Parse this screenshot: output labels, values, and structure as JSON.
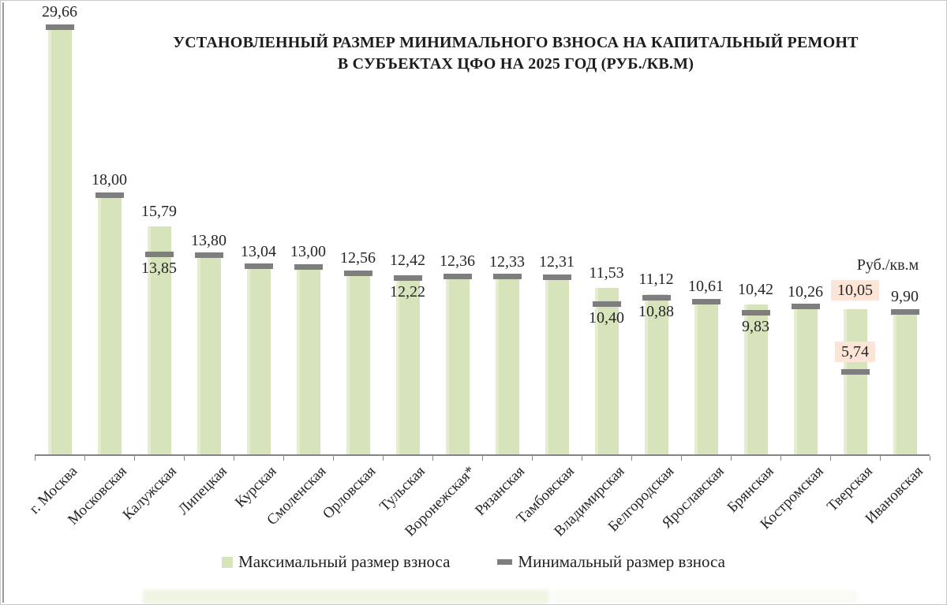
{
  "title": {
    "line1": "УСТАНОВЛЕННЫЙ РАЗМЕР МИНИМАЛЬНОГО ВЗНОСА  НА КАПИТАЛЬНЫЙ РЕМОНТ",
    "line2": "В СУБЪЕКТАХ  ЦФО  НА 2025 ГОД (РУБ./КВ.М)"
  },
  "unit_label": "Руб./кв.м",
  "legend": {
    "max_label": "Максимальный размер взноса",
    "min_label": "Минимальный размер взноса"
  },
  "colors": {
    "bar_fill": "#d7e3ba",
    "bar_fill_light": "#e5edd1",
    "marker": "#7e7e7e",
    "highlight_bg": "#fce5d6",
    "axis": "#858585"
  },
  "chart_data": {
    "type": "bar",
    "title": "УСТАНОВЛЕННЫЙ РАЗМЕР МИНИМАЛЬНОГО ВЗНОСА НА КАПИТАЛЬНЫЙ РЕМОНТ В СУБЪЕКТАХ ЦФО НА 2025 ГОД (РУБ./КВ.М)",
    "ylabel": "Руб./кв.м",
    "ylim": [
      0,
      30
    ],
    "grid": false,
    "legend_position": "bottom",
    "categories": [
      "г. Москва",
      "Московская",
      "Калужская",
      "Липецкая",
      "Курская",
      "Смоленская",
      "Орловская",
      "Тульская",
      "Воронежская*",
      "Рязанская",
      "Тамбовская",
      "Владимирская",
      "Белгородская",
      "Ярославская",
      "Брянская",
      "Костромская",
      "Тверская",
      "Ивановская"
    ],
    "series": [
      {
        "name": "Максимальный размер взноса",
        "values": [
          29.66,
          18.0,
          15.79,
          13.8,
          13.04,
          13.0,
          12.56,
          12.42,
          12.36,
          12.33,
          12.31,
          11.53,
          11.12,
          10.61,
          10.42,
          10.26,
          10.05,
          9.9
        ]
      },
      {
        "name": "Минимальный размер взноса",
        "values": [
          29.66,
          18.0,
          13.85,
          13.8,
          13.04,
          13.0,
          12.56,
          12.22,
          12.36,
          12.33,
          12.31,
          10.4,
          10.88,
          10.61,
          9.83,
          10.26,
          5.74,
          9.9
        ]
      }
    ],
    "bars": [
      {
        "category": "г. Москва",
        "max": 29.66,
        "min": 29.66,
        "max_label": "29,66",
        "min_label": null,
        "min_label_pos": null,
        "highlight": false
      },
      {
        "category": "Московская",
        "max": 18.0,
        "min": 18.0,
        "max_label": "18,00",
        "min_label": null,
        "min_label_pos": null,
        "highlight": false
      },
      {
        "category": "Калужская",
        "max": 15.79,
        "min": 13.85,
        "max_label": "15,79",
        "min_label": "13,85",
        "min_label_pos": "below",
        "highlight": false
      },
      {
        "category": "Липецкая",
        "max": 13.8,
        "min": 13.8,
        "max_label": "13,80",
        "min_label": null,
        "min_label_pos": null,
        "highlight": false
      },
      {
        "category": "Курская",
        "max": 13.04,
        "min": 13.04,
        "max_label": "13,04",
        "min_label": null,
        "min_label_pos": null,
        "highlight": false
      },
      {
        "category": "Смоленская",
        "max": 13.0,
        "min": 13.0,
        "max_label": "13,00",
        "min_label": null,
        "min_label_pos": null,
        "highlight": false
      },
      {
        "category": "Орловская",
        "max": 12.56,
        "min": 12.56,
        "max_label": "12,56",
        "min_label": null,
        "min_label_pos": null,
        "highlight": false
      },
      {
        "category": "Тульская",
        "max": 12.42,
        "min": 12.22,
        "max_label": "12,42",
        "min_label": "12,22",
        "min_label_pos": "below",
        "highlight": false
      },
      {
        "category": "Воронежская*",
        "max": 12.36,
        "min": 12.36,
        "max_label": "12,36",
        "min_label": null,
        "min_label_pos": null,
        "highlight": false
      },
      {
        "category": "Рязанская",
        "max": 12.33,
        "min": 12.33,
        "max_label": "12,33",
        "min_label": null,
        "min_label_pos": null,
        "highlight": false
      },
      {
        "category": "Тамбовская",
        "max": 12.31,
        "min": 12.31,
        "max_label": "12,31",
        "min_label": null,
        "min_label_pos": null,
        "highlight": false
      },
      {
        "category": "Владимирская",
        "max": 11.53,
        "min": 10.4,
        "max_label": "11,53",
        "min_label": "10,40",
        "min_label_pos": "below",
        "highlight": false
      },
      {
        "category": "Белгородская",
        "max": 11.12,
        "min": 10.88,
        "max_label": "11,12",
        "min_label": "10,88",
        "min_label_pos": "below",
        "highlight": false
      },
      {
        "category": "Ярославская",
        "max": 10.61,
        "min": 10.61,
        "max_label": "10,61",
        "min_label": null,
        "min_label_pos": null,
        "highlight": false
      },
      {
        "category": "Брянская",
        "max": 10.42,
        "min": 9.83,
        "max_label": "10,42",
        "min_label": "9,83",
        "min_label_pos": "below",
        "highlight": false
      },
      {
        "category": "Костромская",
        "max": 10.26,
        "min": 10.26,
        "max_label": "10,26",
        "min_label": null,
        "min_label_pos": null,
        "highlight": false
      },
      {
        "category": "Тверская",
        "max": 10.05,
        "min": 5.74,
        "max_label": "10,05",
        "min_label": "5,74",
        "min_label_pos": "above",
        "highlight": true
      },
      {
        "category": "Ивановская",
        "max": 9.9,
        "min": 9.9,
        "max_label": "9,90",
        "min_label": null,
        "min_label_pos": null,
        "highlight": false
      }
    ]
  }
}
